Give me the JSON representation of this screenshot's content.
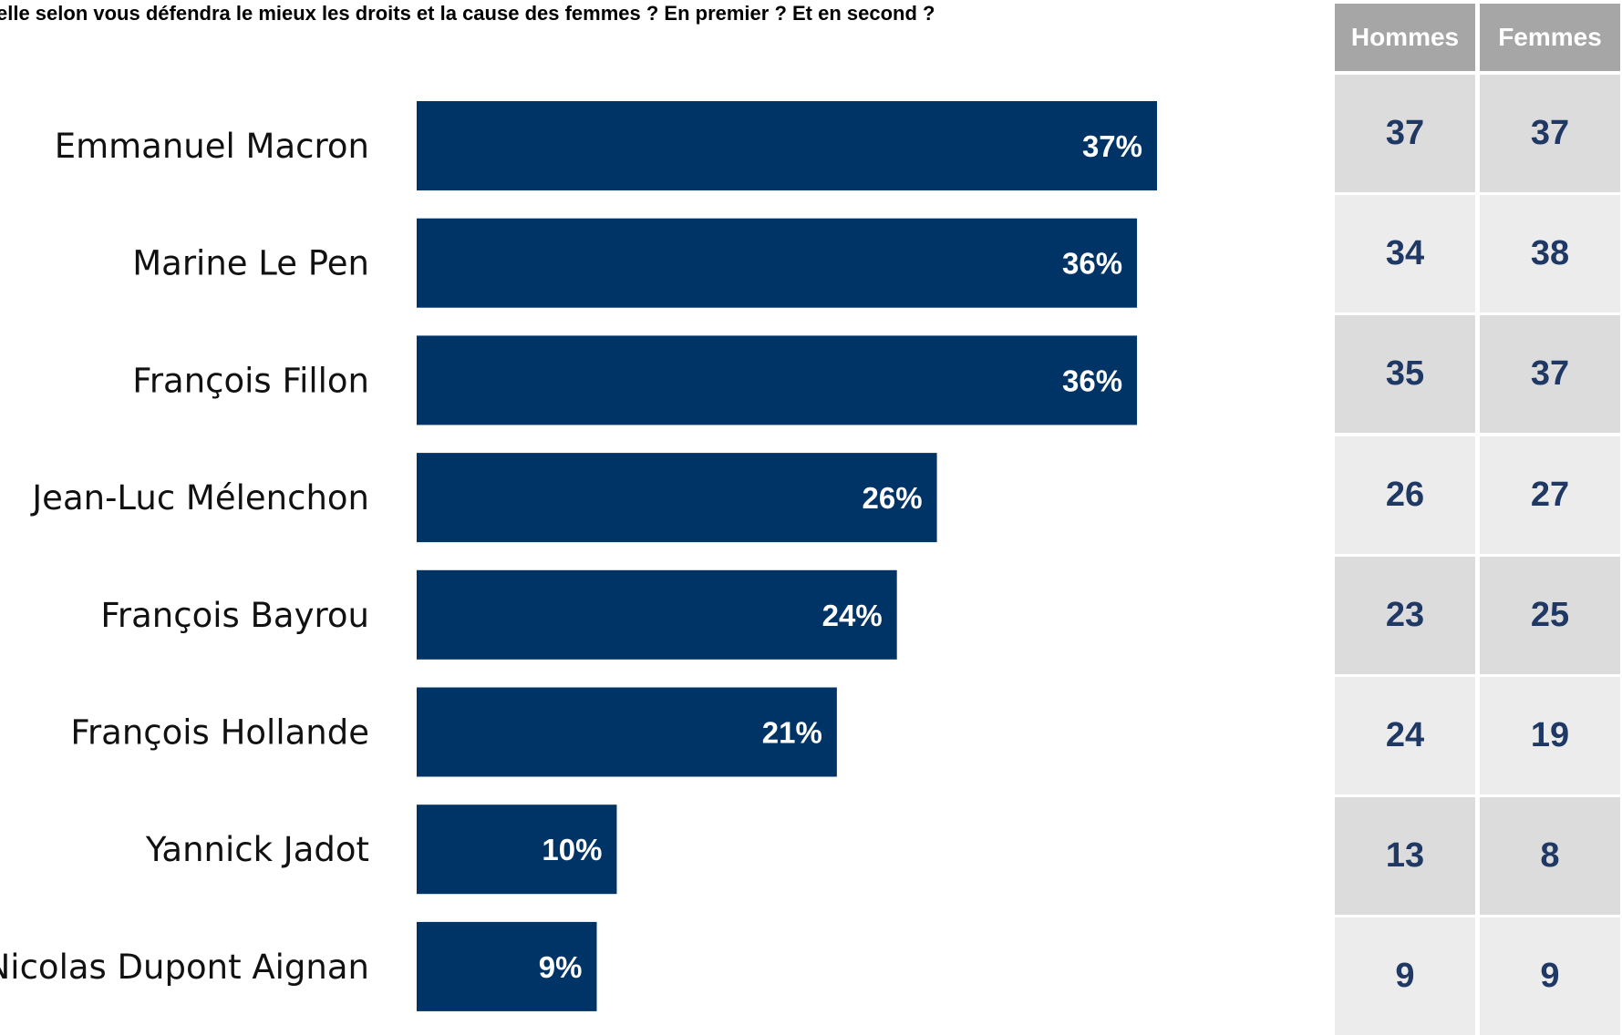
{
  "title": "elle selon vous défendra le mieux les droits et la cause des femmes ? En premier ? Et en second ?",
  "colors": {
    "bar": "#003366",
    "bar_label": "#ffffff",
    "table_header": "#a6a6a6",
    "table_value": "#1f3864",
    "row_dark": "#dcdcdc",
    "row_light": "#ececec"
  },
  "chart_data": {
    "type": "bar",
    "orientation": "horizontal",
    "categories": [
      "Emmanuel Macron",
      "Marine Le Pen",
      "François Fillon",
      "Jean-Luc Mélenchon",
      "François Bayrou",
      "François Hollande",
      "Yannick Jadot",
      "Nicolas Dupont Aignan"
    ],
    "values": [
      37,
      36,
      36,
      26,
      24,
      21,
      10,
      9
    ],
    "value_labels": [
      "37%",
      "36%",
      "36%",
      "26%",
      "24%",
      "21%",
      "10%",
      "9%"
    ],
    "xlim": [
      0,
      37
    ],
    "grid": false,
    "legend": "none"
  },
  "table": {
    "headers": [
      "Hommes",
      "Femmes"
    ],
    "rows": [
      [
        "37",
        "37"
      ],
      [
        "34",
        "38"
      ],
      [
        "35",
        "37"
      ],
      [
        "26",
        "27"
      ],
      [
        "23",
        "25"
      ],
      [
        "24",
        "19"
      ],
      [
        "13",
        "8"
      ],
      [
        "9",
        "9"
      ]
    ]
  }
}
